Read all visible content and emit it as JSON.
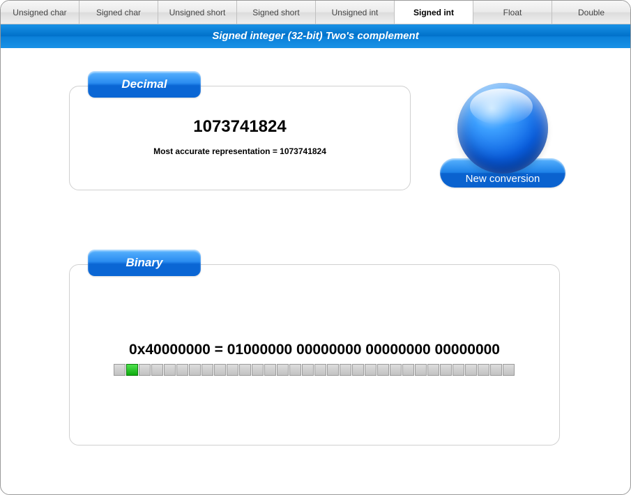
{
  "tabs": [
    {
      "label": "Unsigned char",
      "active": false
    },
    {
      "label": "Signed char",
      "active": false
    },
    {
      "label": "Unsigned short",
      "active": false
    },
    {
      "label": "Signed short",
      "active": false
    },
    {
      "label": "Unsigned int",
      "active": false
    },
    {
      "label": "Signed int",
      "active": true
    },
    {
      "label": "Float",
      "active": false
    },
    {
      "label": "Double",
      "active": false
    }
  ],
  "band_title": "Signed integer (32-bit) Two's complement",
  "decimal": {
    "panel_label": "Decimal",
    "value": "1073741824",
    "note": "Most accurate representation = 1073741824"
  },
  "binary": {
    "panel_label": "Binary",
    "text": "0x40000000 = 01000000 00000000 00000000 00000000",
    "bits": [
      0,
      1,
      0,
      0,
      0,
      0,
      0,
      0,
      0,
      0,
      0,
      0,
      0,
      0,
      0,
      0,
      0,
      0,
      0,
      0,
      0,
      0,
      0,
      0,
      0,
      0,
      0,
      0,
      0,
      0,
      0,
      0
    ],
    "bit_colors": {
      "unset": "#cccccc",
      "set": "#1fbf1f"
    }
  },
  "new_conversion_label": "New conversion",
  "colors": {
    "accent_blue": "#0a66d4",
    "band_blue": "#0a7fd8",
    "orb_blue": "#0a5fe0"
  }
}
